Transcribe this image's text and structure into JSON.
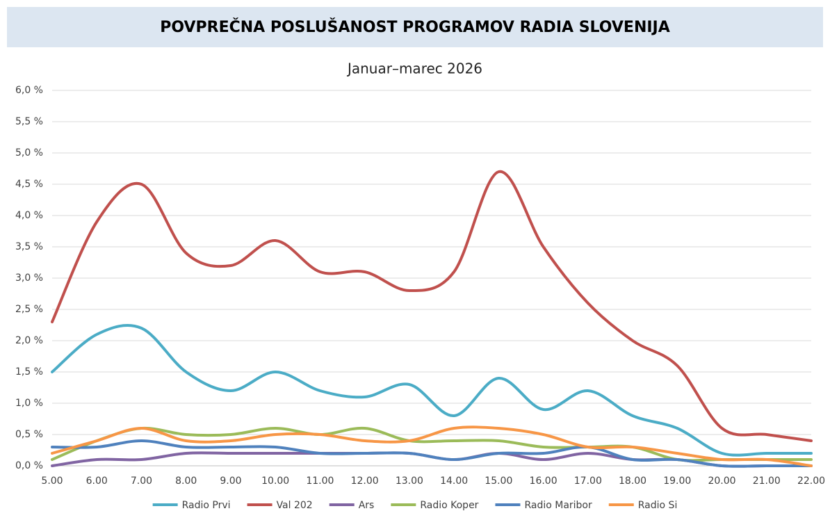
{
  "chart_data": {
    "type": "line",
    "title": "POVPREČNA POSLUŠANOST PROGRAMOV RADIA SLOVENIJA",
    "subtitle": "Januar–marec 2026",
    "categories": [
      "5.00",
      "6.00",
      "7.00",
      "8.00",
      "9.00",
      "10.00",
      "11.00",
      "12.00",
      "13.00",
      "14.00",
      "15.00",
      "16.00",
      "17.00",
      "18.00",
      "19.00",
      "20.00",
      "21.00",
      "22.00"
    ],
    "series": [
      {
        "name": "Radio Prvi",
        "color": "#4bacc6",
        "values": [
          1.5,
          2.1,
          2.2,
          1.5,
          1.2,
          1.5,
          1.2,
          1.1,
          1.3,
          0.8,
          1.4,
          0.9,
          1.2,
          0.8,
          0.6,
          0.2,
          0.2,
          0.2
        ]
      },
      {
        "name": "Val 202",
        "color": "#c0504d",
        "values": [
          2.3,
          3.9,
          4.5,
          3.4,
          3.2,
          3.6,
          3.1,
          3.1,
          2.8,
          3.1,
          4.7,
          3.5,
          2.6,
          2.0,
          1.6,
          0.6,
          0.5,
          0.4
        ]
      },
      {
        "name": "Ars",
        "color": "#8064a2",
        "values": [
          0.0,
          0.1,
          0.1,
          0.2,
          0.2,
          0.2,
          0.2,
          0.2,
          0.2,
          0.1,
          0.2,
          0.1,
          0.2,
          0.1,
          0.1,
          0.0,
          0.0,
          0.0
        ]
      },
      {
        "name": "Radio Koper",
        "color": "#9bbb59",
        "values": [
          0.1,
          0.4,
          0.6,
          0.5,
          0.5,
          0.6,
          0.5,
          0.6,
          0.4,
          0.4,
          0.4,
          0.3,
          0.3,
          0.3,
          0.1,
          0.1,
          0.1,
          0.1
        ]
      },
      {
        "name": "Radio Maribor",
        "color": "#4f81bd",
        "values": [
          0.3,
          0.3,
          0.4,
          0.3,
          0.3,
          0.3,
          0.2,
          0.2,
          0.2,
          0.1,
          0.2,
          0.2,
          0.3,
          0.1,
          0.1,
          0.0,
          0.0,
          0.0
        ]
      },
      {
        "name": "Radio Si",
        "color": "#f79646",
        "values": [
          0.2,
          0.4,
          0.6,
          0.4,
          0.4,
          0.5,
          0.5,
          0.4,
          0.4,
          0.6,
          0.6,
          0.5,
          0.3,
          0.3,
          0.2,
          0.1,
          0.1,
          0.0
        ]
      }
    ],
    "ylim": [
      0,
      6
    ],
    "yticks": [
      {
        "value": 0,
        "label": "0,0 %"
      },
      {
        "value": 0.5,
        "label": "0,5 %"
      },
      {
        "value": 1,
        "label": "1,0 %"
      },
      {
        "value": 1.5,
        "label": "1,5 %"
      },
      {
        "value": 2,
        "label": "2,0 %"
      },
      {
        "value": 2.5,
        "label": "2,5 %"
      },
      {
        "value": 3,
        "label": "3,0 %"
      },
      {
        "value": 3.5,
        "label": "3,5 %"
      },
      {
        "value": 4,
        "label": "4,0 %"
      },
      {
        "value": 4.5,
        "label": "4,5 %"
      },
      {
        "value": 5,
        "label": "5,0 %"
      },
      {
        "value": 5.5,
        "label": "5,5 %"
      },
      {
        "value": 6,
        "label": "6,0 %"
      }
    ],
    "grid": true,
    "smooth": true,
    "legend": "bottom"
  }
}
